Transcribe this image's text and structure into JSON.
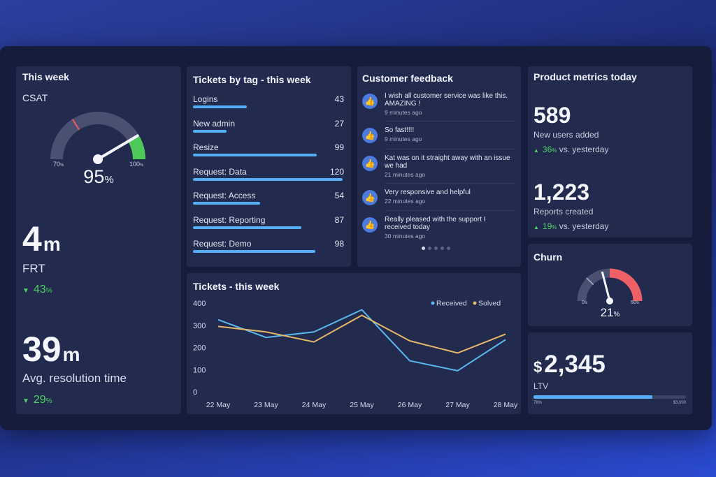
{
  "this_week": {
    "title": "This week",
    "csat": {
      "label": "CSAT",
      "value": "95",
      "unit": "%",
      "min_label": "70",
      "min_unit": "%",
      "max_label": "100",
      "max_unit": "%",
      "level": 0.95
    },
    "frt": {
      "value": "4",
      "unit": "m",
      "label": "FRT",
      "change": "43",
      "change_unit": "%"
    },
    "resolution": {
      "value": "39",
      "unit": "m",
      "label": "Avg. resolution time",
      "change": "29",
      "change_unit": "%"
    }
  },
  "tickets_by_tag": {
    "title": "Tickets by tag - this week",
    "max": 120,
    "items": [
      {
        "label": "Logins",
        "value": 43
      },
      {
        "label": "New admin",
        "value": 27
      },
      {
        "label": "Resize",
        "value": 99
      },
      {
        "label": "Request: Data",
        "value": 120
      },
      {
        "label": "Request: Access",
        "value": 54
      },
      {
        "label": "Request: Reporting",
        "value": 87
      },
      {
        "label": "Request: Demo",
        "value": 98
      }
    ]
  },
  "customer_feedback": {
    "title": "Customer feedback",
    "icon": "thumbs-up-icon",
    "items": [
      {
        "text": "I wish all customer service was like this. AMAZING !",
        "time": "9 minutes ago"
      },
      {
        "text": "So fast!!!!",
        "time": "9 minutes ago"
      },
      {
        "text": "Kat was on it straight away with an issue we had",
        "time": "21 minutes ago"
      },
      {
        "text": "Very responsive and helpful",
        "time": "22 minutes ago"
      },
      {
        "text": "Really pleased with the support I received today",
        "time": "30 minutes ago"
      }
    ],
    "pages": 5,
    "active_page": 0
  },
  "product_metrics": {
    "title": "Product metrics today",
    "new_users": {
      "value": "589",
      "label": "New users added",
      "change": "36",
      "change_unit": "%",
      "suffix": "vs. yesterday"
    },
    "reports": {
      "value": "1,223",
      "label": "Reports created",
      "change": "19",
      "change_unit": "%",
      "suffix": "vs. yesterday"
    }
  },
  "churn": {
    "title": "Churn",
    "value": "21",
    "unit": "%",
    "min_label": "0",
    "min_unit": "%",
    "max_label": "50",
    "max_unit": "%",
    "level": 0.42
  },
  "ltv": {
    "currency": "$",
    "value": "2,345",
    "label": "LTV",
    "progress_label": "78%",
    "target_label": "$3,000",
    "progress": 0.78
  },
  "chart_data": {
    "type": "line",
    "title": "Tickets - this week",
    "categories": [
      "22 May",
      "23 May",
      "24 May",
      "25 May",
      "26 May",
      "27 May",
      "28 May"
    ],
    "series": [
      {
        "name": "Received",
        "color": "#5ab8f0",
        "values": [
          325,
          245,
          270,
          370,
          140,
          95,
          235
        ]
      },
      {
        "name": "Solved",
        "color": "#e6b86a",
        "values": [
          295,
          270,
          225,
          345,
          230,
          175,
          260
        ]
      }
    ],
    "yticks": [
      0,
      100,
      200,
      300,
      400
    ],
    "ylim": [
      0,
      400
    ],
    "grid": false,
    "legend": "top-right"
  }
}
